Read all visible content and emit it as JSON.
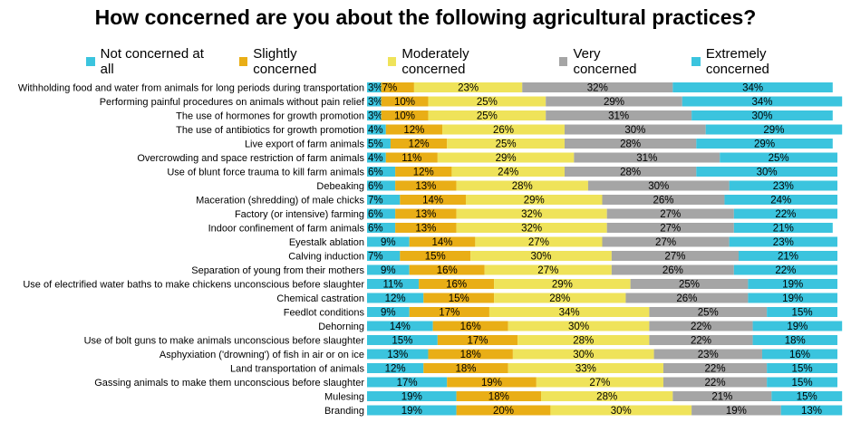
{
  "chart_data": {
    "type": "bar",
    "orientation": "horizontal-stacked-100",
    "title": "How concerned are you about the following agricultural practices?",
    "legend_position": "top",
    "colors": [
      "#3BC4DE",
      "#E9AE16",
      "#EFE35A",
      "#A5A5A5",
      "#3BC4DE"
    ],
    "categories": [
      "Withholding food and water from animals for long periods during transportation",
      "Performing painful procedures on animals without pain relief",
      "The use of hormones for growth promotion",
      "The use of antibiotics for growth promotion",
      "Live export of farm animals",
      "Overcrowding and space restriction of farm animals",
      "Use of blunt force trauma to kill farm animals",
      "Debeaking",
      "Maceration (shredding) of male chicks",
      "Factory (or intensive) farming",
      "Indoor confinement of farm animals",
      "Eyestalk ablation",
      "Calving induction",
      "Separation of young from their mothers",
      "Use of electrified water baths to make chickens unconscious before slaughter",
      "Chemical castration",
      "Feedlot conditions",
      "Dehorning",
      "Use of bolt guns to make animals unconscious before slaughter",
      "Asphyxiation ('drowning') of fish in air or on ice",
      "Land transportation of animals",
      "Gassing animals to make them unconscious before slaughter",
      "Mulesing",
      "Branding"
    ],
    "series": [
      {
        "name": "Not concerned at all",
        "values": [
          3,
          3,
          3,
          4,
          5,
          4,
          6,
          6,
          7,
          6,
          6,
          9,
          7,
          9,
          11,
          12,
          9,
          14,
          15,
          13,
          12,
          17,
          19,
          19
        ]
      },
      {
        "name": "Slightly concerned",
        "values": [
          7,
          10,
          10,
          12,
          12,
          11,
          12,
          13,
          14,
          13,
          13,
          14,
          15,
          16,
          16,
          15,
          17,
          16,
          17,
          18,
          18,
          19,
          18,
          20
        ]
      },
      {
        "name": "Moderately concerned",
        "values": [
          23,
          25,
          25,
          26,
          25,
          29,
          24,
          28,
          29,
          32,
          32,
          27,
          30,
          27,
          29,
          28,
          34,
          30,
          28,
          30,
          33,
          27,
          28,
          30
        ]
      },
      {
        "name": "Very concerned",
        "values": [
          32,
          29,
          31,
          30,
          28,
          31,
          28,
          30,
          26,
          27,
          27,
          27,
          27,
          26,
          25,
          26,
          25,
          22,
          22,
          23,
          22,
          22,
          21,
          19
        ]
      },
      {
        "name": "Extremely concerned",
        "values": [
          34,
          34,
          30,
          29,
          29,
          25,
          30,
          23,
          24,
          22,
          21,
          23,
          21,
          22,
          19,
          19,
          15,
          19,
          18,
          16,
          15,
          15,
          15,
          13
        ]
      }
    ],
    "value_suffix": "%"
  }
}
